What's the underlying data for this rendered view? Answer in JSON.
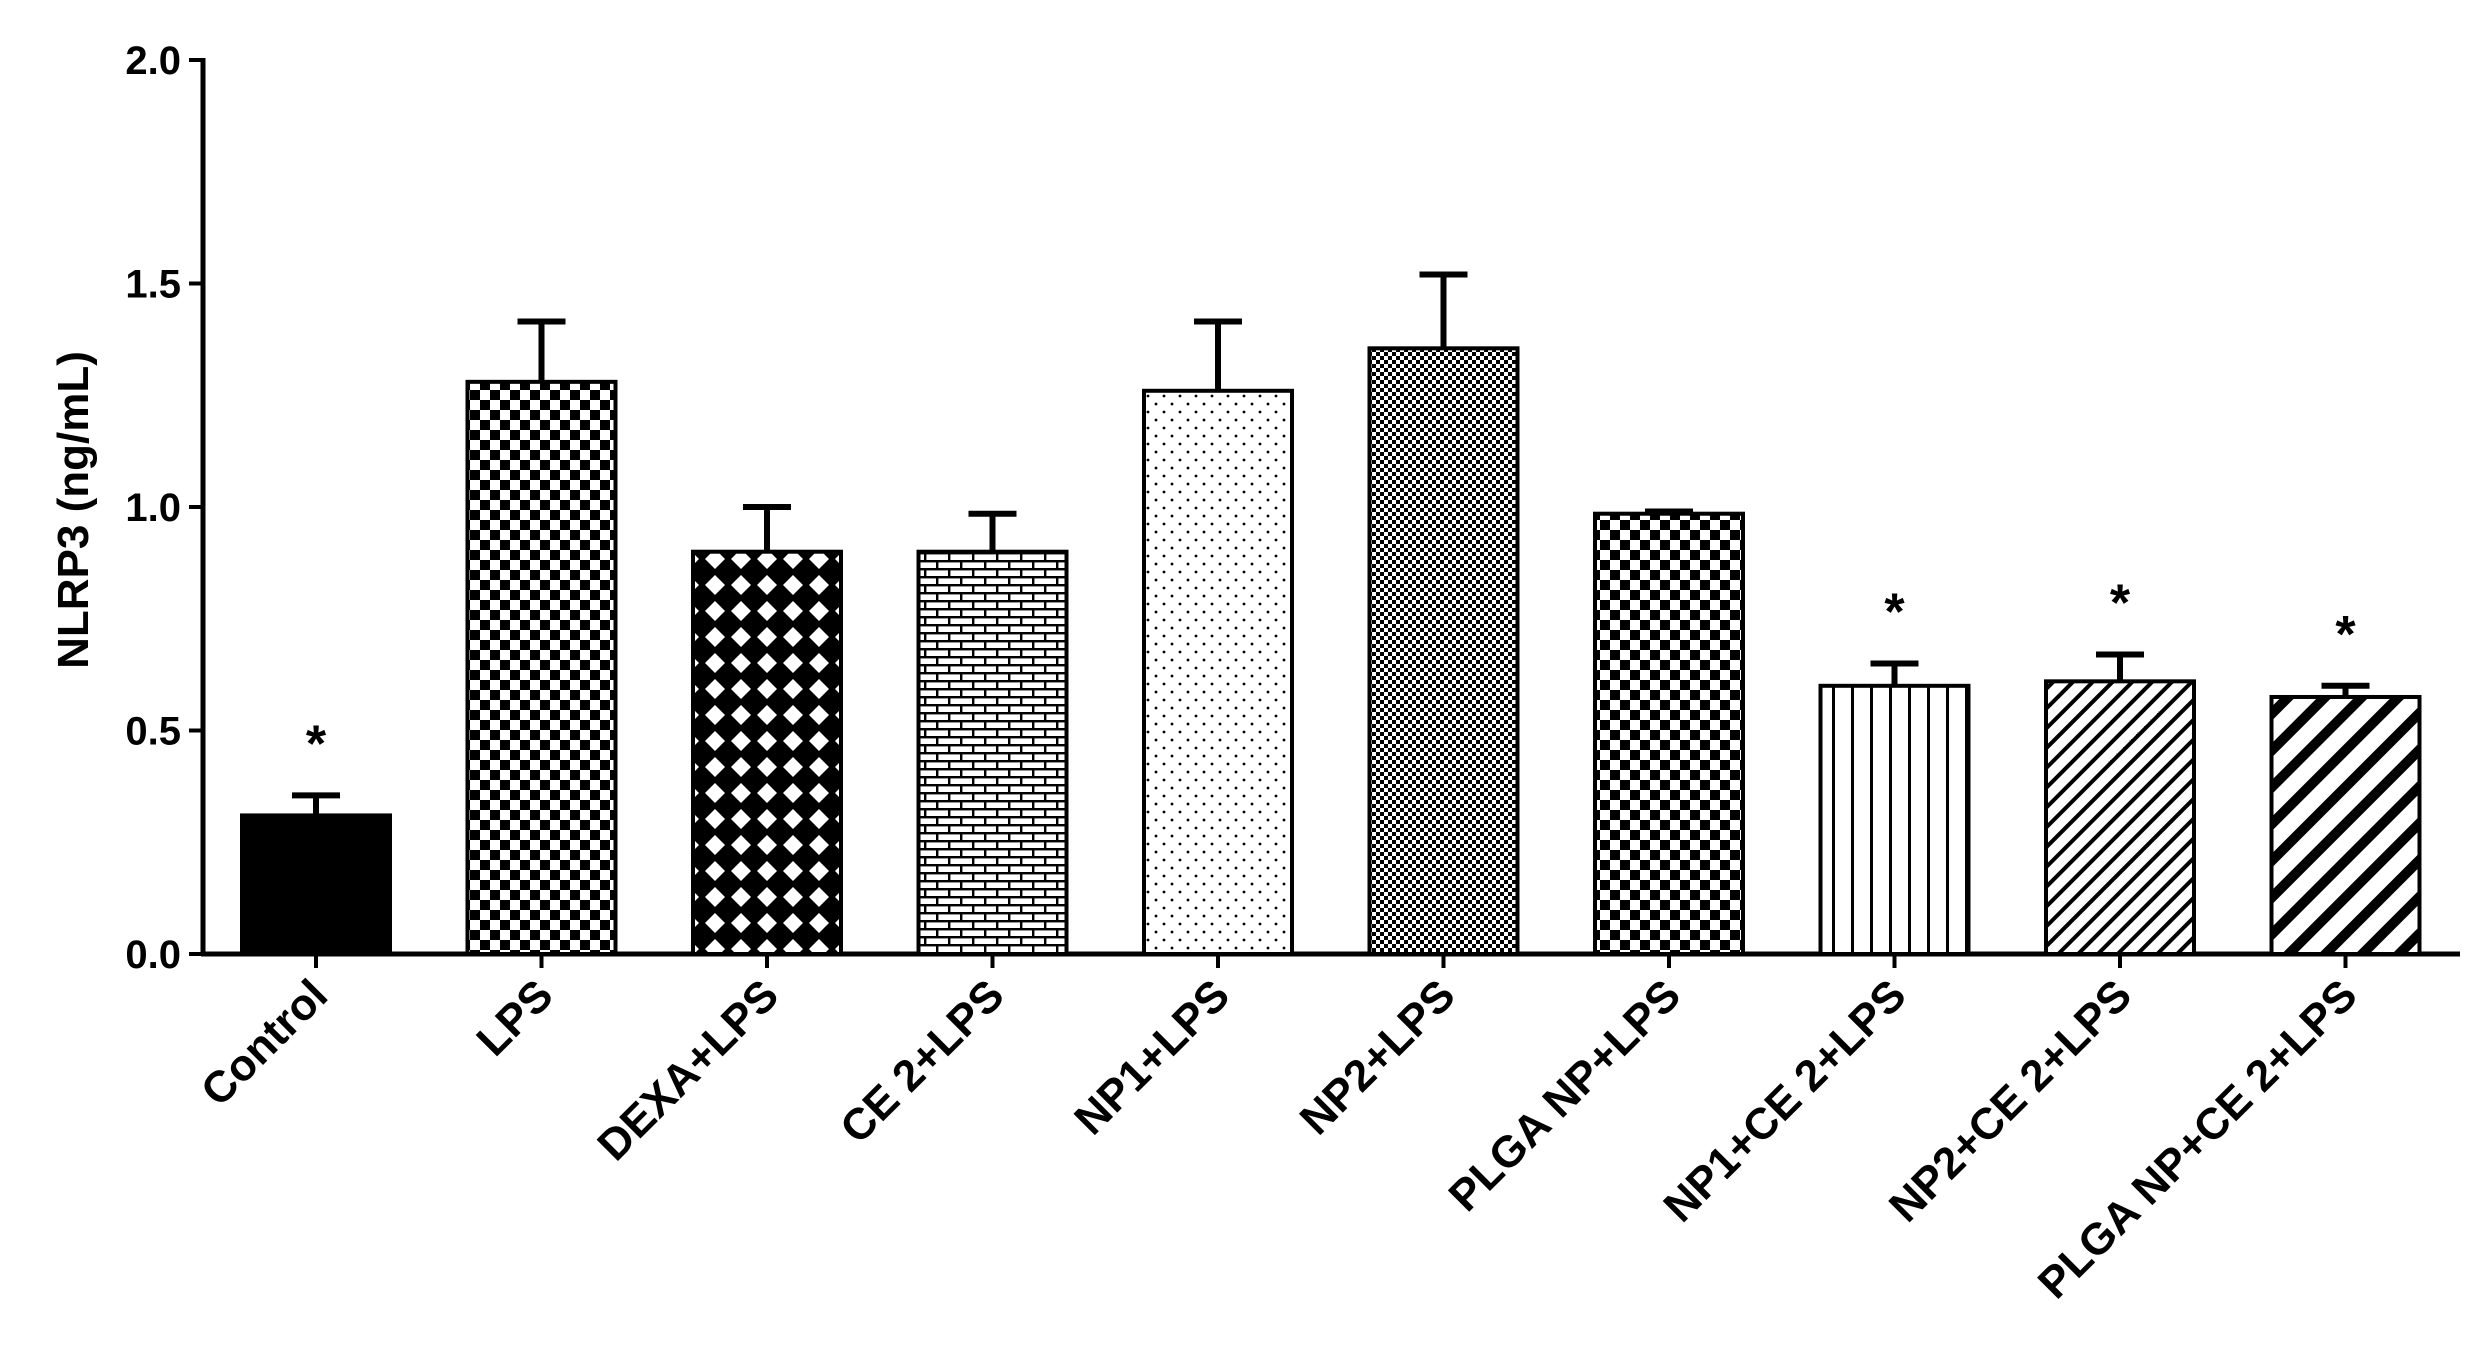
{
  "chart_data": {
    "type": "bar",
    "ylabel": "NLRP3 (ng/mL)",
    "xlabel": "",
    "ylim": [
      0,
      2.0
    ],
    "yticks": [
      "0.0",
      "0.5",
      "1.0",
      "1.5",
      "2.0"
    ],
    "categories": [
      "Control",
      "LPS",
      "DEXA+LPS",
      "CE 2+LPS",
      "NP1+LPS",
      "NP2+LPS",
      "PLGA NP+LPS",
      "NP1+CE 2+LPS",
      "NP2+CE 2+LPS",
      "PLGA NP+CE 2+LPS"
    ],
    "values": [
      0.31,
      1.28,
      0.9,
      0.9,
      1.26,
      1.355,
      0.985,
      0.6,
      0.61,
      0.575
    ],
    "errors": [
      0.045,
      0.135,
      0.1,
      0.085,
      0.155,
      0.165,
      0.005,
      0.05,
      0.06,
      0.025
    ],
    "patterns": [
      "solid",
      "checker",
      "diagonal-lattice",
      "brick",
      "sparse-dots",
      "dense-dots",
      "checker",
      "vertical-lines",
      "fine-diagonal",
      "thick-diagonal"
    ],
    "significance": [
      "*",
      "",
      "",
      "",
      "",
      "",
      "",
      "*",
      "*",
      "*"
    ],
    "grid": false,
    "legend": "none"
  }
}
